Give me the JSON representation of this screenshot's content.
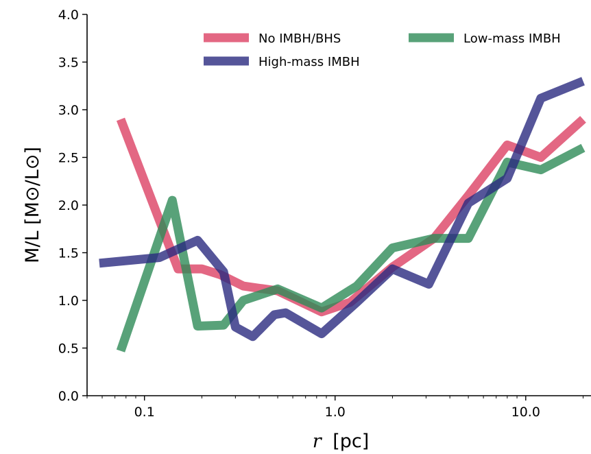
{
  "chart_data": {
    "type": "line",
    "xscale": "log",
    "xlim": [
      0.05,
      22
    ],
    "ylim": [
      0,
      4
    ],
    "xlabel_math": "r",
    "xlabel_unit": "[pc]",
    "ylabel": "M/L [M⊙/L⊙]",
    "x_ticks": [
      {
        "value": 0.1,
        "label": "0.1"
      },
      {
        "value": 1,
        "label": "1.0"
      },
      {
        "value": 10,
        "label": "10.0"
      }
    ],
    "y_ticks": [
      {
        "value": 0.0,
        "label": "0.0"
      },
      {
        "value": 0.5,
        "label": "0.5"
      },
      {
        "value": 1.0,
        "label": "1.0"
      },
      {
        "value": 1.5,
        "label": "1.5"
      },
      {
        "value": 2.0,
        "label": "2.0"
      },
      {
        "value": 2.5,
        "label": "2.5"
      },
      {
        "value": 3.0,
        "label": "3.0"
      },
      {
        "value": 3.5,
        "label": "3.5"
      },
      {
        "value": 4.0,
        "label": "4.0"
      }
    ],
    "grid": false,
    "legend_position": "top-right",
    "series": [
      {
        "name": "No IMBH/BHS",
        "color": "#dc4164",
        "x": [
          0.075,
          0.15,
          0.2,
          0.25,
          0.33,
          0.5,
          0.85,
          1.2,
          2.0,
          3.3,
          5.0,
          8.0,
          12.0,
          20.0
        ],
        "y": [
          2.9,
          1.33,
          1.33,
          1.27,
          1.15,
          1.1,
          0.88,
          0.98,
          1.35,
          1.65,
          2.1,
          2.63,
          2.5,
          2.9
        ]
      },
      {
        "name": "Low-mass IMBH",
        "color": "#2e8b57",
        "x": [
          0.075,
          0.14,
          0.19,
          0.26,
          0.33,
          0.5,
          0.85,
          1.3,
          2.0,
          3.3,
          5.0,
          8.0,
          12.0,
          20.0
        ],
        "y": [
          0.47,
          2.05,
          0.73,
          0.74,
          1.0,
          1.12,
          0.92,
          1.15,
          1.55,
          1.65,
          1.65,
          2.45,
          2.37,
          2.6
        ]
      },
      {
        "name": "High-mass IMBH",
        "color": "#2a2a7f",
        "x": [
          0.058,
          0.12,
          0.19,
          0.26,
          0.3,
          0.37,
          0.48,
          0.55,
          0.85,
          1.3,
          2.0,
          3.1,
          5.0,
          8.0,
          12.0,
          20.0
        ],
        "y": [
          1.39,
          1.45,
          1.63,
          1.3,
          0.72,
          0.62,
          0.85,
          0.87,
          0.65,
          0.98,
          1.33,
          1.17,
          2.02,
          2.28,
          3.12,
          3.3
        ]
      }
    ]
  }
}
